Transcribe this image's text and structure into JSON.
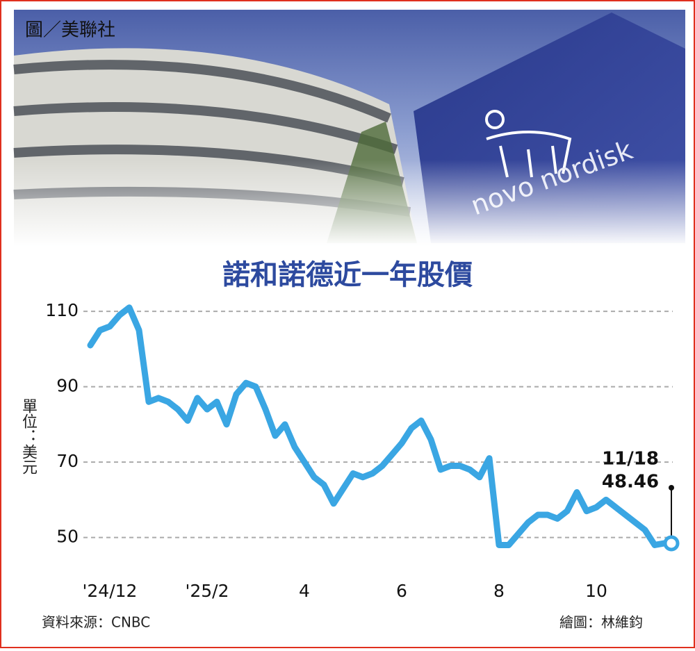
{
  "chart_data": {
    "type": "line",
    "photo_credit": "圖／美聯社",
    "photo_sign": "novo nordisk",
    "title": "諾和諾德近一年股價",
    "y_label": "單位：美元",
    "categories": [
      null,
      null,
      "'24/12",
      null,
      null,
      null,
      null,
      null,
      null,
      null,
      null,
      null,
      "'25/2",
      null,
      null,
      null,
      null,
      null,
      null,
      null,
      null,
      null,
      "4",
      null,
      null,
      null,
      null,
      null,
      null,
      null,
      null,
      null,
      "6",
      null,
      null,
      null,
      null,
      null,
      null,
      null,
      null,
      null,
      "8",
      null,
      null,
      null,
      null,
      null,
      null,
      null,
      null,
      null,
      "10",
      null,
      null,
      null,
      null,
      null,
      null,
      null
    ],
    "values": [
      101,
      105,
      106,
      109,
      111,
      105,
      86,
      87,
      86,
      84,
      81,
      87,
      84,
      86,
      80,
      88,
      91,
      90,
      84,
      77,
      80,
      74,
      70,
      66,
      64,
      59,
      63,
      67,
      66,
      67,
      69,
      72,
      75,
      79,
      81,
      76,
      68,
      69,
      69,
      68,
      66,
      71,
      48,
      48,
      51,
      54,
      56,
      56,
      55,
      57,
      62,
      57,
      58,
      60,
      58,
      56,
      54,
      52,
      48,
      48.46
    ],
    "color": "#3aa6e3",
    "annotation": "11/18",
    "ylim": [
      42,
      115
    ],
    "yticks": [
      50,
      70,
      90,
      110
    ],
    "grid": true,
    "source": "資料來源：CNBC",
    "credit": "繪圖：林維鈞"
  }
}
